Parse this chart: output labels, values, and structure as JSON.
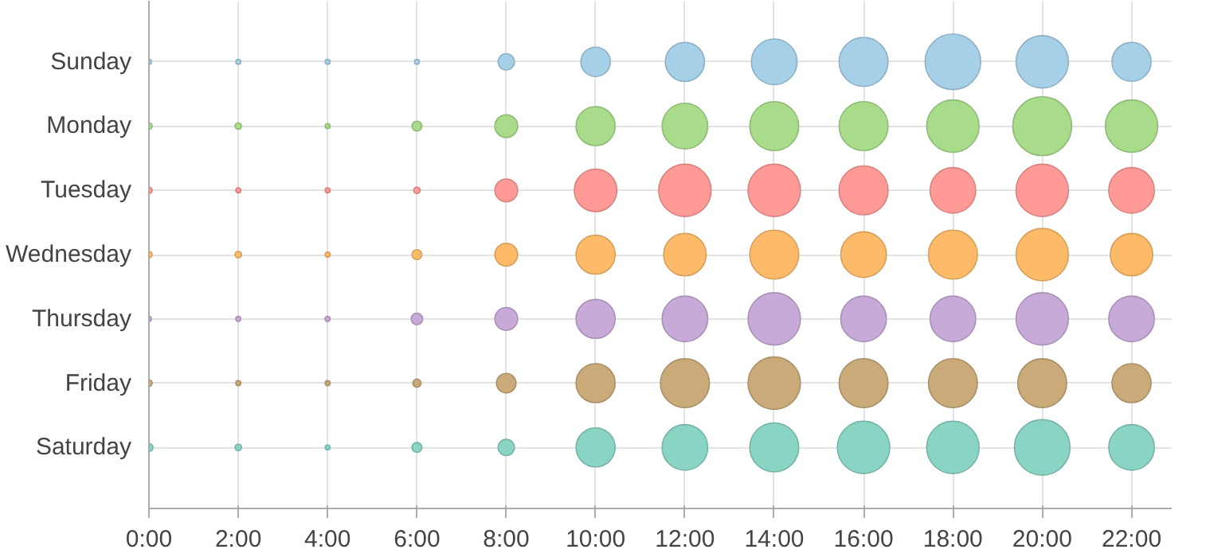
{
  "chart_data": {
    "type": "bubble",
    "orientation": "horizontal",
    "categories": [
      "Sunday",
      "Monday",
      "Tuesday",
      "Wednesday",
      "Thursday",
      "Friday",
      "Saturday"
    ],
    "xlim": [
      0,
      22.9
    ],
    "xticks": [
      {
        "value": 0,
        "label": "0:00"
      },
      {
        "value": 2,
        "label": "2:00"
      },
      {
        "value": 4,
        "label": "4:00"
      },
      {
        "value": 6,
        "label": "6:00"
      },
      {
        "value": 8,
        "label": "8:00"
      },
      {
        "value": 10,
        "label": "10:00"
      },
      {
        "value": 12,
        "label": "12:00"
      },
      {
        "value": 14,
        "label": "14:00"
      },
      {
        "value": 16,
        "label": "16:00"
      },
      {
        "value": 18,
        "label": "18:00"
      },
      {
        "value": 20,
        "label": "20:00"
      },
      {
        "value": 22,
        "label": "22:00"
      }
    ],
    "grid": true,
    "series": [
      {
        "colors": [
          "#a6d0e8",
          "#a8dc8a",
          "#ff9a96",
          "#fdbb6a",
          "#c8aad8",
          "#c9aa78",
          "#8ad4c4"
        ],
        "values": [
          0,
          0,
          0,
          0,
          0,
          0,
          0
        ],
        "sizes": [
          0.007,
          0.012,
          0.012,
          0.012,
          0.007,
          0.012,
          0.019
        ]
      },
      {
        "colors": [
          "#a6d0e8",
          "#a8dc8a",
          "#ff9a96",
          "#fdbb6a",
          "#c8aad8",
          "#c9aa78",
          "#8ad4c4"
        ],
        "values": [
          2,
          2,
          2,
          2,
          2,
          2,
          2
        ],
        "sizes": [
          0.007,
          0.012,
          0.007,
          0.012,
          0.007,
          0.007,
          0.012
        ]
      },
      {
        "colors": [
          "#a6d0e8",
          "#a8dc8a",
          "#ff9a96",
          "#fdbb6a",
          "#c8aad8",
          "#c9aa78",
          "#8ad4c4"
        ],
        "values": [
          4,
          4,
          4,
          4,
          4,
          4,
          4
        ],
        "sizes": [
          0.007,
          0.007,
          0.007,
          0.007,
          0.007,
          0.007,
          0.007
        ]
      },
      {
        "colors": [
          "#a6d0e8",
          "#a8dc8a",
          "#ff9a96",
          "#fdbb6a",
          "#c8aad8",
          "#c9aa78",
          "#8ad4c4"
        ],
        "values": [
          6,
          6,
          6,
          6,
          6,
          6,
          6
        ],
        "sizes": [
          0.007,
          0.028,
          0.012,
          0.028,
          0.038,
          0.019,
          0.028
        ]
      },
      {
        "colors": [
          "#a6d0e8",
          "#a8dc8a",
          "#ff9a96",
          "#fdbb6a",
          "#c8aad8",
          "#c9aa78",
          "#8ad4c4"
        ],
        "values": [
          8,
          8,
          8,
          8,
          8,
          8,
          8
        ],
        "sizes": [
          0.077,
          0.15,
          0.15,
          0.15,
          0.15,
          0.11,
          0.077
        ]
      },
      {
        "colors": [
          "#a6d0e8",
          "#a8dc8a",
          "#ff9a96",
          "#fdbb6a",
          "#c8aad8",
          "#c9aa78",
          "#8ad4c4"
        ],
        "values": [
          10,
          10,
          10,
          10,
          10,
          10,
          10
        ],
        "sizes": [
          0.25,
          0.44,
          0.52,
          0.44,
          0.44,
          0.44,
          0.44
        ]
      },
      {
        "colors": [
          "#a6d0e8",
          "#a8dc8a",
          "#ff9a96",
          "#fdbb6a",
          "#c8aad8",
          "#c9aa78",
          "#8ad4c4"
        ],
        "values": [
          12,
          12,
          12,
          12,
          12,
          12,
          12
        ],
        "sizes": [
          0.44,
          0.6,
          0.79,
          0.52,
          0.6,
          0.69,
          0.6
        ]
      },
      {
        "colors": [
          "#a6d0e8",
          "#a8dc8a",
          "#ff9a96",
          "#fdbb6a",
          "#c8aad8",
          "#c9aa78",
          "#8ad4c4"
        ],
        "values": [
          14,
          14,
          14,
          14,
          14,
          14,
          14
        ],
        "sizes": [
          0.6,
          0.69,
          0.79,
          0.69,
          0.79,
          0.79,
          0.69
        ]
      },
      {
        "colors": [
          "#a6d0e8",
          "#a8dc8a",
          "#ff9a96",
          "#fdbb6a",
          "#c8aad8",
          "#c9aa78",
          "#8ad4c4"
        ],
        "values": [
          16,
          16,
          16,
          16,
          16,
          16,
          16
        ],
        "sizes": [
          0.69,
          0.69,
          0.69,
          0.6,
          0.6,
          0.69,
          0.79
        ]
      },
      {
        "colors": [
          "#a6d0e8",
          "#a8dc8a",
          "#ff9a96",
          "#fdbb6a",
          "#c8aad8",
          "#c9aa78",
          "#8ad4c4"
        ],
        "values": [
          18,
          18,
          18,
          18,
          18,
          18,
          18
        ],
        "sizes": [
          0.89,
          0.79,
          0.6,
          0.69,
          0.6,
          0.69,
          0.79
        ]
      },
      {
        "colors": [
          "#a6d0e8",
          "#a8dc8a",
          "#ff9a96",
          "#fdbb6a",
          "#c8aad8",
          "#c9aa78",
          "#8ad4c4"
        ],
        "values": [
          20,
          20,
          20,
          20,
          20,
          20,
          20
        ],
        "sizes": [
          0.79,
          1,
          0.79,
          0.79,
          0.79,
          0.69,
          0.89
        ]
      },
      {
        "colors": [
          "#a6d0e8",
          "#a8dc8a",
          "#ff9a96",
          "#fdbb6a",
          "#c8aad8",
          "#c9aa78",
          "#8ad4c4"
        ],
        "values": [
          22,
          22,
          22,
          22,
          22,
          22,
          22
        ],
        "sizes": [
          0.44,
          0.79,
          0.6,
          0.52,
          0.6,
          0.44,
          0.6
        ]
      }
    ]
  }
}
